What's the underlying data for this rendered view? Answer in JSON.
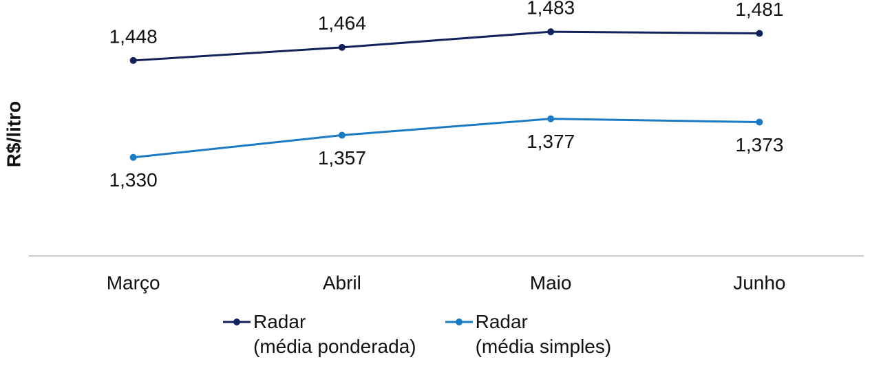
{
  "chart_data": {
    "type": "line",
    "y_label": "R$/litro",
    "categories": [
      "Março",
      "Abril",
      "Maio",
      "Junho"
    ],
    "series": [
      {
        "name": "Radar\n(média ponderada)",
        "color": "#14225c",
        "values": [
          1.448,
          1.464,
          1.483,
          1.481
        ],
        "value_labels": [
          "1,448",
          "1,464",
          "1,483",
          "1,481"
        ]
      },
      {
        "name": "Radar\n(média simples)",
        "color": "#1a7bc4",
        "values": [
          1.33,
          1.357,
          1.377,
          1.373
        ],
        "value_labels": [
          "1,330",
          "1,357",
          "1,377",
          "1,373"
        ]
      }
    ],
    "ylim": [
      1.21,
      1.52
    ]
  }
}
